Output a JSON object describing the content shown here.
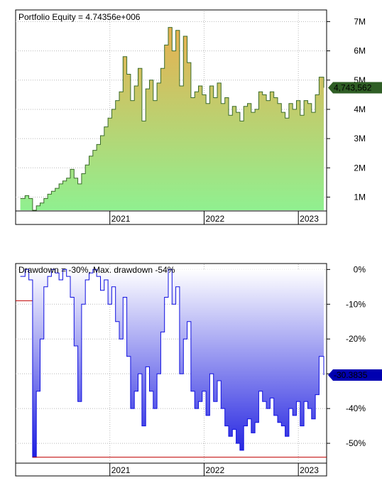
{
  "chart_data": [
    {
      "type": "area",
      "title": "Portfolio Equity = 4.74356e+006",
      "x_ticks": [
        "2021",
        "2022",
        "2023"
      ],
      "y_ticks": [
        "1M",
        "2M",
        "3M",
        "4M",
        "5M",
        "6M",
        "7M"
      ],
      "ylim": [
        0.55,
        7.35
      ],
      "y_unit": "M",
      "grid": true,
      "last_value_label": "4,743,562",
      "colors": {
        "line": "#3a6b2a",
        "fill_top": "#e8b050",
        "fill_bottom": "#90f090",
        "marker": "#2f5e25"
      },
      "series": [
        {
          "x": [
            2020.05,
            2020.1,
            2020.14,
            2020.18,
            2020.22,
            2020.26,
            2020.3,
            2020.34,
            2020.38,
            2020.42,
            2020.46,
            2020.5,
            2020.54,
            2020.58,
            2020.62,
            2020.66,
            2020.7,
            2020.74,
            2020.78,
            2020.82,
            2020.86,
            2020.9,
            2020.94,
            2020.98,
            2021.02,
            2021.06,
            2021.1,
            2021.14,
            2021.18,
            2021.22,
            2021.26,
            2021.3,
            2021.34,
            2021.38,
            2021.42,
            2021.46,
            2021.5,
            2021.54,
            2021.58,
            2021.62,
            2021.66,
            2021.7,
            2021.74,
            2021.78,
            2021.82,
            2021.86,
            2021.9,
            2021.94,
            2021.98,
            2022.02,
            2022.06,
            2022.1,
            2022.14,
            2022.18,
            2022.22,
            2022.26,
            2022.3,
            2022.34,
            2022.38,
            2022.42,
            2022.46,
            2022.5,
            2022.54,
            2022.58,
            2022.62,
            2022.66,
            2022.7,
            2022.74,
            2022.78,
            2022.82,
            2022.86,
            2022.9,
            2022.94,
            2022.98,
            2023.02,
            2023.06,
            2023.1,
            2023.14,
            2023.18,
            2023.22,
            2023.27
          ],
          "values": [
            0.95,
            1.05,
            0.95,
            0.55,
            0.7,
            0.8,
            0.95,
            1.1,
            1.2,
            1.3,
            1.45,
            1.55,
            1.65,
            1.95,
            1.65,
            1.45,
            1.8,
            2.1,
            2.4,
            2.6,
            2.8,
            3.1,
            3.4,
            3.7,
            4.0,
            4.3,
            4.6,
            5.8,
            5.2,
            4.3,
            4.8,
            5.4,
            3.6,
            4.7,
            5.0,
            4.3,
            4.9,
            5.4,
            6.2,
            6.8,
            6.0,
            6.7,
            4.8,
            6.5,
            5.6,
            4.4,
            4.6,
            4.8,
            4.5,
            4.2,
            4.8,
            4.4,
            4.9,
            4.2,
            4.4,
            3.8,
            4.1,
            3.9,
            3.6,
            4.1,
            4.2,
            3.9,
            4.0,
            4.6,
            4.5,
            4.3,
            4.6,
            4.4,
            4.2,
            3.9,
            3.7,
            4.2,
            4.0,
            4.3,
            3.8,
            4.3,
            4.2,
            3.9,
            4.5,
            5.1,
            4.74
          ]
        }
      ]
    },
    {
      "type": "area",
      "title": "Drawdown = -30%, Max. drawdown -54%",
      "x_ticks": [
        "2021",
        "2022",
        "2023"
      ],
      "y_ticks": [
        "0%",
        "-10%",
        "-20%",
        "-30%",
        "-40%",
        "-50%"
      ],
      "ylim": [
        -55.5,
        1.5
      ],
      "y_unit": "%",
      "grid": true,
      "last_value_label": "-30.3835",
      "max_drawdown": -54,
      "colors": {
        "line": "#1010e0",
        "fill_top": "#ffffff",
        "fill_bottom": "#2020e0",
        "marker": "#0000b0",
        "max_line": "#c00000"
      },
      "series": [
        {
          "x": [
            2020.05,
            2020.1,
            2020.14,
            2020.18,
            2020.22,
            2020.26,
            2020.3,
            2020.34,
            2020.38,
            2020.42,
            2020.46,
            2020.5,
            2020.54,
            2020.58,
            2020.62,
            2020.66,
            2020.7,
            2020.74,
            2020.78,
            2020.82,
            2020.86,
            2020.9,
            2020.94,
            2020.98,
            2021.02,
            2021.06,
            2021.1,
            2021.14,
            2021.18,
            2021.22,
            2021.26,
            2021.3,
            2021.34,
            2021.38,
            2021.42,
            2021.46,
            2021.5,
            2021.54,
            2021.58,
            2021.62,
            2021.66,
            2021.7,
            2021.74,
            2021.78,
            2021.82,
            2021.86,
            2021.9,
            2021.94,
            2021.98,
            2022.02,
            2022.06,
            2022.1,
            2022.14,
            2022.18,
            2022.22,
            2022.26,
            2022.3,
            2022.34,
            2022.38,
            2022.42,
            2022.46,
            2022.5,
            2022.54,
            2022.58,
            2022.62,
            2022.66,
            2022.7,
            2022.74,
            2022.78,
            2022.82,
            2022.86,
            2022.9,
            2022.94,
            2022.98,
            2023.02,
            2023.06,
            2023.1,
            2023.14,
            2023.18,
            2023.22,
            2023.27
          ],
          "values": [
            -2,
            0,
            -3,
            -54,
            -35,
            -20,
            -5,
            -2,
            0,
            -1,
            -3,
            0,
            -2,
            -8,
            -22,
            -38,
            -10,
            -3,
            -1,
            0,
            -2,
            -6,
            -3,
            -10,
            -5,
            -15,
            -20,
            -8,
            -25,
            -40,
            -35,
            -30,
            -45,
            -28,
            -35,
            -40,
            -30,
            -18,
            -8,
            0,
            -10,
            -5,
            -30,
            -20,
            -15,
            -35,
            -40,
            -38,
            -35,
            -42,
            -30,
            -38,
            -32,
            -40,
            -45,
            -48,
            -46,
            -50,
            -52,
            -45,
            -43,
            -47,
            -44,
            -35,
            -38,
            -40,
            -37,
            -42,
            -44,
            -45,
            -48,
            -40,
            -42,
            -38,
            -45,
            -38,
            -40,
            -43,
            -36,
            -25,
            -30.38
          ]
        }
      ]
    }
  ]
}
